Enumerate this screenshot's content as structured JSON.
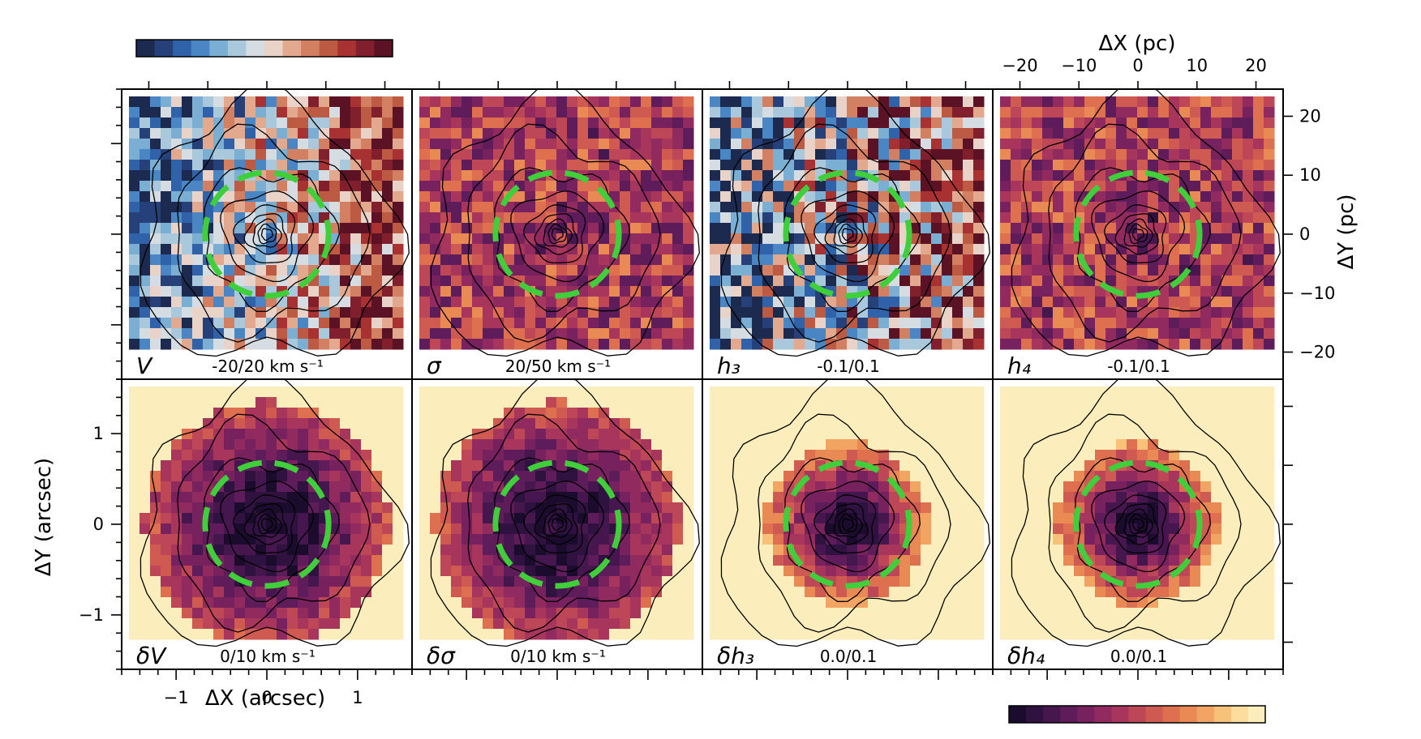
{
  "chart_data": {
    "type": "heatmap",
    "layout": {
      "rows": 2,
      "cols": 4
    },
    "axes": {
      "bottom": {
        "label": "ΔX (arcsec)",
        "ticks": [
          -1,
          0,
          1
        ],
        "tick_labels": [
          "−1",
          "0",
          "1"
        ],
        "range": [
          -1.6,
          1.6
        ]
      },
      "left": {
        "label": "ΔY (arcsec)",
        "ticks": [
          -1,
          0,
          1
        ],
        "tick_labels": [
          "−1",
          "0",
          "1"
        ],
        "range": [
          -1.6,
          1.6
        ]
      },
      "top": {
        "label": "ΔX (pc)",
        "ticks": [
          -20,
          -10,
          0,
          10,
          20
        ],
        "tick_labels": [
          "−20",
          "−10",
          "0",
          "10",
          "20"
        ],
        "range": [
          -24.6,
          24.6
        ]
      },
      "right": {
        "label": "ΔY (pc)",
        "ticks": [
          20,
          10,
          0,
          -10,
          -20
        ],
        "tick_labels": [
          "20",
          "10",
          "0",
          "−10",
          "−20"
        ],
        "range": [
          -24.6,
          24.6
        ]
      }
    },
    "colorbars": {
      "diverging": {
        "position": "top-left",
        "colors": [
          "#1b2a4e",
          "#26407a",
          "#2f62a8",
          "#4a86c4",
          "#7aaed3",
          "#a9c8dc",
          "#d6dde2",
          "#e9d3c9",
          "#e3a98f",
          "#d27f62",
          "#bd5a43",
          "#a83232",
          "#821f2c",
          "#5a1224"
        ]
      },
      "sequential": {
        "position": "bottom-right",
        "colors": [
          "#1b0c2e",
          "#2f1240",
          "#46174f",
          "#5e1c5a",
          "#78215f",
          "#912a5f",
          "#a8365c",
          "#bd4657",
          "#cf5a52",
          "#de704f",
          "#e98a55",
          "#f2a563",
          "#f7c17a",
          "#fbdc9c",
          "#fceebc"
        ]
      }
    },
    "panels": [
      {
        "symbol": "V",
        "range_label": "-20/20 km s⁻¹",
        "colormap": "diverging",
        "has_ring": true
      },
      {
        "symbol": "σ",
        "range_label": "20/50 km s⁻¹",
        "colormap": "sequential",
        "has_ring": true
      },
      {
        "symbol": "h₃",
        "range_label": "-0.1/0.1",
        "colormap": "diverging",
        "has_ring": true
      },
      {
        "symbol": "h₄",
        "range_label": "-0.1/0.1",
        "colormap": "sequential",
        "has_ring": true
      },
      {
        "symbol": "δV",
        "range_label": "0/10 km s⁻¹",
        "colormap": "sequential",
        "has_ring": true
      },
      {
        "symbol": "δσ",
        "range_label": "0/10 km s⁻¹",
        "colormap": "sequential",
        "has_ring": true
      },
      {
        "symbol": "δh₃",
        "range_label": "0.0/0.1",
        "colormap": "sequential",
        "has_ring": true
      },
      {
        "symbol": "δh₄",
        "range_label": "0.0/0.1",
        "colormap": "sequential",
        "has_ring": true
      }
    ],
    "ring_radius_arcsec": {
      "top_row": 0.68,
      "bottom_row": 0.68,
      "bottom_h_panels": 0.68
    },
    "grid": false
  }
}
